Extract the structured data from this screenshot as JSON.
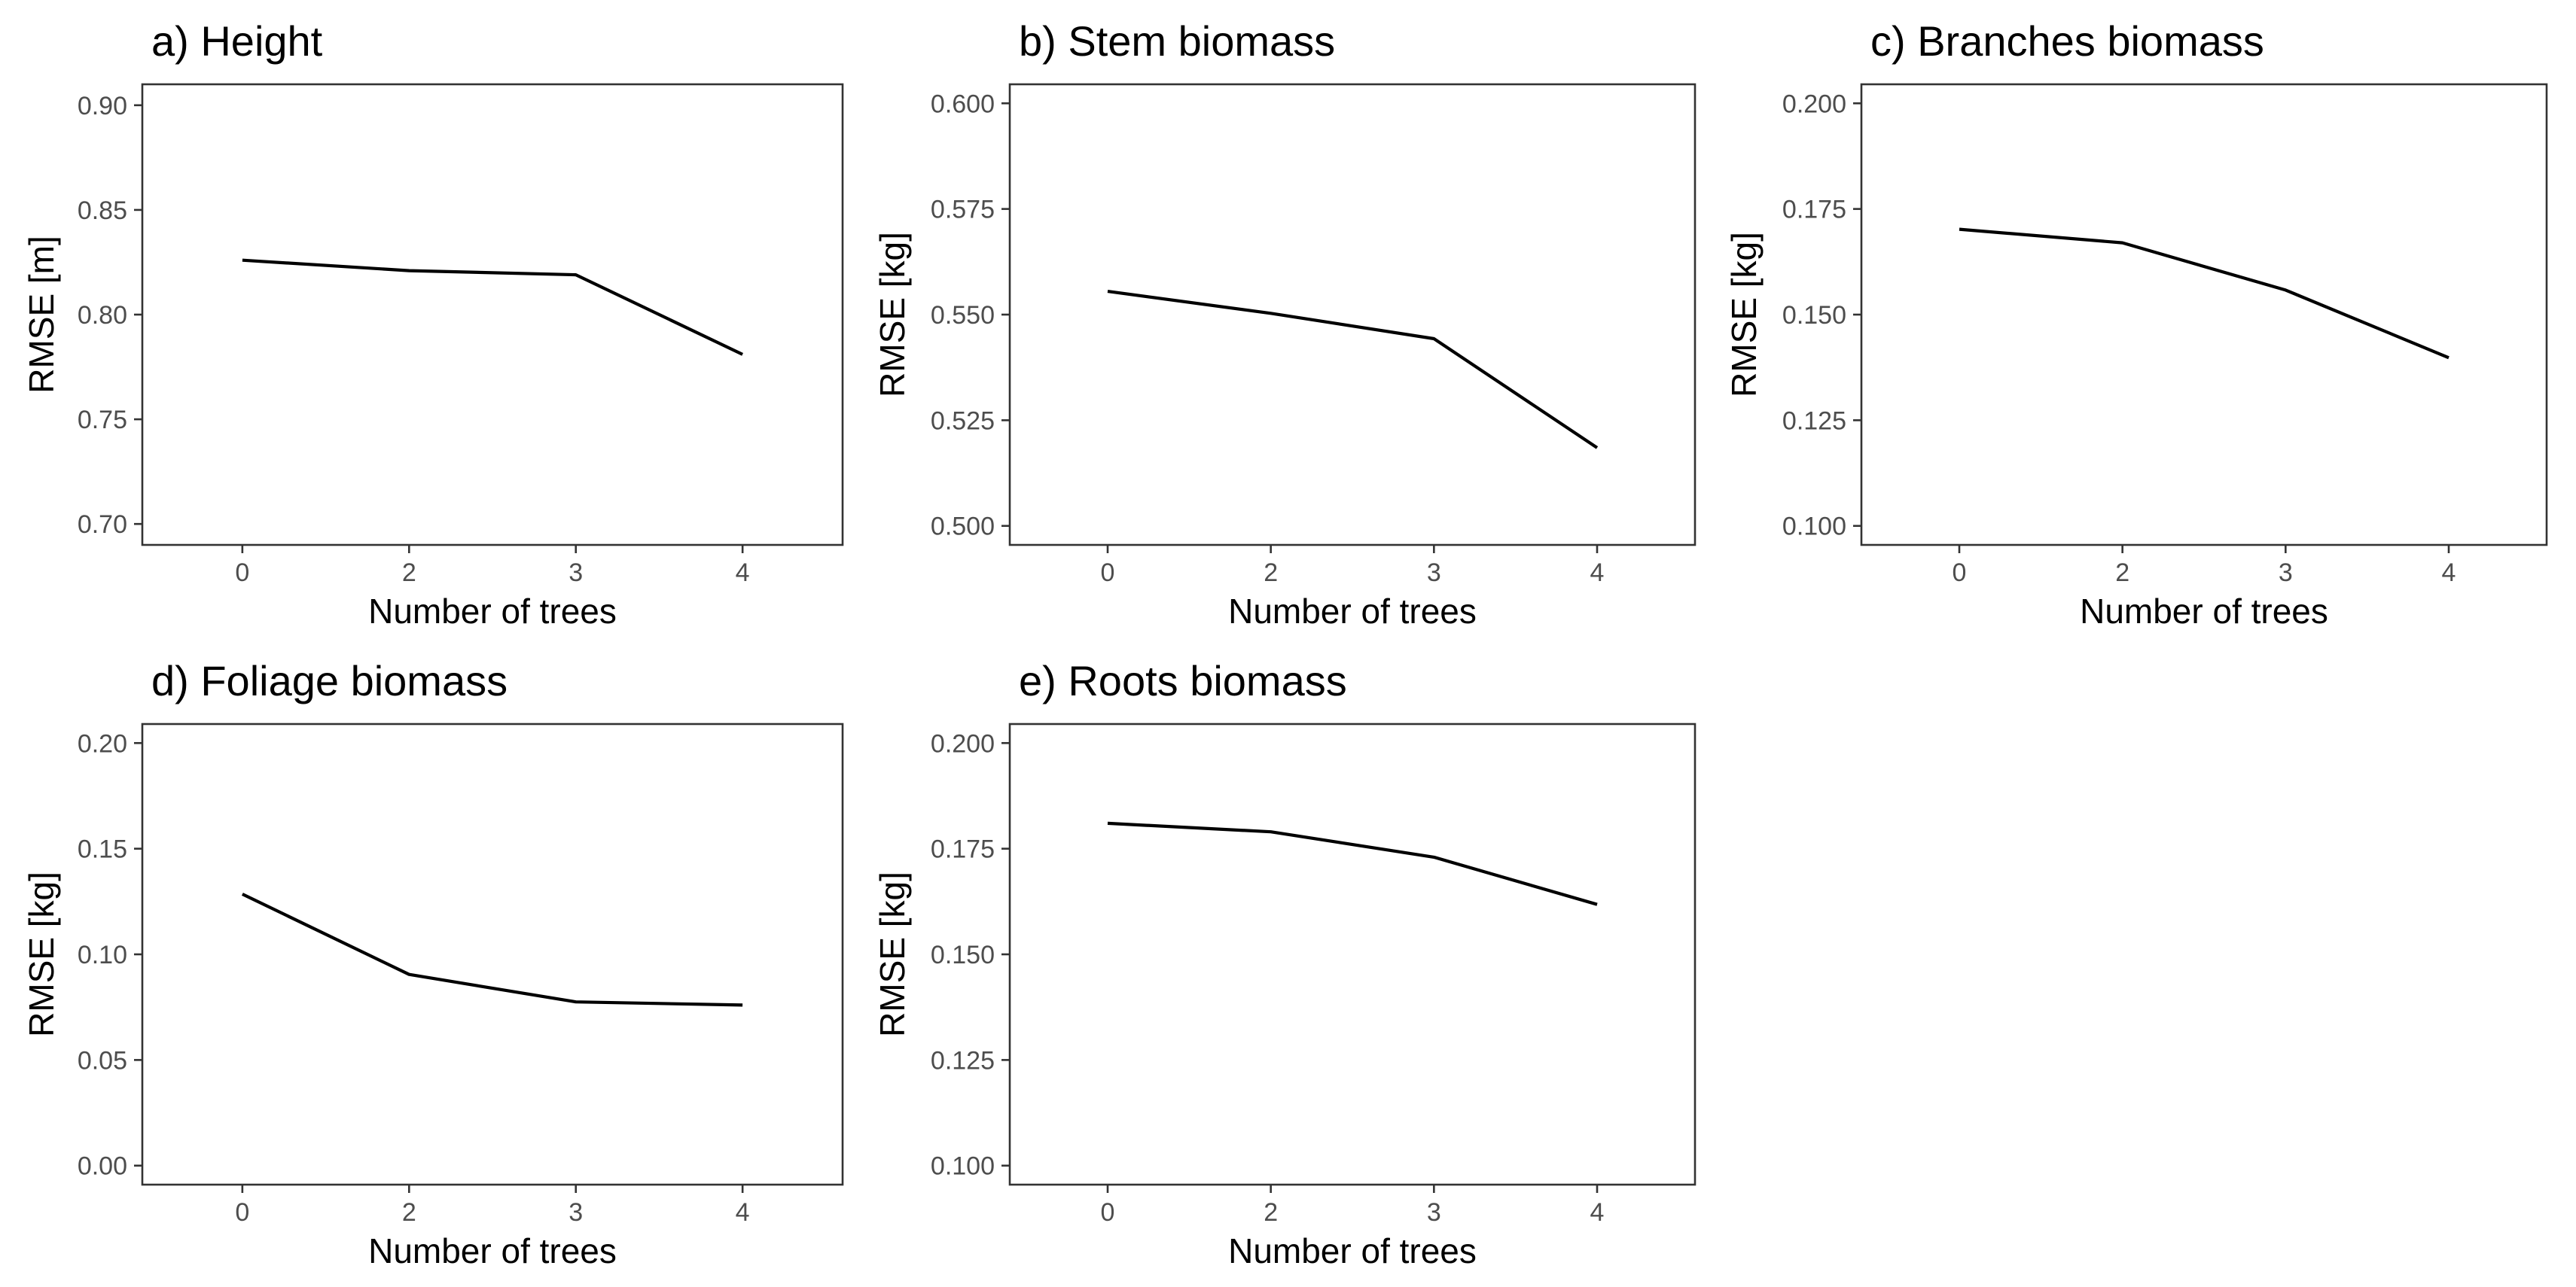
{
  "chart_data": [
    {
      "id": "a",
      "type": "line",
      "title": "a) Height",
      "xlabel": "Number of trees",
      "ylabel": "RMSE [m]",
      "categories": [
        "0",
        "2",
        "3",
        "4"
      ],
      "values": [
        0.826,
        0.821,
        0.819,
        0.781
      ],
      "ylim": [
        0.69,
        0.91
      ],
      "yticks": [
        0.7,
        0.75,
        0.8,
        0.85,
        0.9
      ],
      "ytick_labels": [
        "0.70",
        "0.75",
        "0.80",
        "0.85",
        "0.90"
      ],
      "grid": false,
      "legend": "none",
      "line_color": "#000000"
    },
    {
      "id": "b",
      "type": "line",
      "title": "b) Stem biomass",
      "xlabel": "Number of trees",
      "ylabel": "RMSE [kg]",
      "categories": [
        "0",
        "2",
        "3",
        "4"
      ],
      "values": [
        0.5555,
        0.5503,
        0.5443,
        0.5185
      ],
      "ylim": [
        0.4955,
        0.6045
      ],
      "yticks": [
        0.5,
        0.525,
        0.55,
        0.575,
        0.6
      ],
      "ytick_labels": [
        "0.500",
        "0.525",
        "0.550",
        "0.575",
        "0.600"
      ],
      "grid": false,
      "legend": "none",
      "line_color": "#000000"
    },
    {
      "id": "c",
      "type": "line",
      "title": "c) Branches biomass",
      "xlabel": "Number of trees",
      "ylabel": "RMSE [kg]",
      "categories": [
        "0",
        "2",
        "3",
        "4"
      ],
      "values": [
        0.1702,
        0.167,
        0.1558,
        0.1398
      ],
      "ylim": [
        0.0955,
        0.2045
      ],
      "yticks": [
        0.1,
        0.125,
        0.15,
        0.175,
        0.2
      ],
      "ytick_labels": [
        "0.100",
        "0.125",
        "0.150",
        "0.175",
        "0.200"
      ],
      "grid": false,
      "legend": "none",
      "line_color": "#000000"
    },
    {
      "id": "d",
      "type": "line",
      "title": "d) Foliage biomass",
      "xlabel": "Number of trees",
      "ylabel": "RMSE [kg]",
      "categories": [
        "0",
        "2",
        "3",
        "4"
      ],
      "values": [
        0.1285,
        0.0905,
        0.0775,
        0.076
      ],
      "ylim": [
        -0.009,
        0.209
      ],
      "yticks": [
        0.0,
        0.05,
        0.1,
        0.15,
        0.2
      ],
      "ytick_labels": [
        "0.00",
        "0.05",
        "0.10",
        "0.15",
        "0.20"
      ],
      "grid": false,
      "legend": "none",
      "line_color": "#000000"
    },
    {
      "id": "e",
      "type": "line",
      "title": "e) Roots biomass",
      "xlabel": "Number of trees",
      "ylabel": "RMSE [kg]",
      "categories": [
        "0",
        "2",
        "3",
        "4"
      ],
      "values": [
        0.181,
        0.179,
        0.173,
        0.1618
      ],
      "ylim": [
        0.0955,
        0.2045
      ],
      "yticks": [
        0.1,
        0.125,
        0.15,
        0.175,
        0.2
      ],
      "ytick_labels": [
        "0.100",
        "0.125",
        "0.150",
        "0.175",
        "0.200"
      ],
      "grid": false,
      "legend": "none",
      "line_color": "#000000"
    }
  ]
}
